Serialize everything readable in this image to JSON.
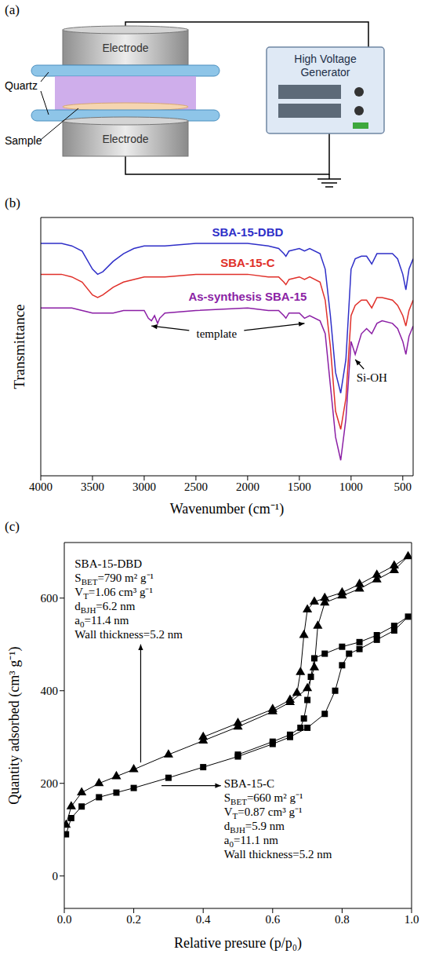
{
  "diagram": {
    "label": "(a)",
    "electrode_top": "Electrode",
    "electrode_bottom": "Electrode",
    "quartz": "Quartz",
    "sample": "Sample",
    "generator": "High Voltage Generator"
  },
  "chart_data": [
    {
      "panel": "(b)",
      "type": "line",
      "x_label": "Wavenumber (cm⁻¹)",
      "y_label": "Transmittance",
      "xlim": [
        4000,
        400
      ],
      "xticks": [
        4000,
        3500,
        3000,
        2500,
        2000,
        1500,
        1000,
        500
      ],
      "ylim": [
        0,
        100
      ],
      "tick_labels": "x",
      "x": [
        4000,
        3800,
        3700,
        3600,
        3500,
        3450,
        3400,
        3300,
        3200,
        3100,
        3000,
        2960,
        2930,
        2900,
        2870,
        2850,
        2800,
        2500,
        2000,
        1800,
        1700,
        1650,
        1630,
        1600,
        1500,
        1450,
        1400,
        1300,
        1250,
        1200,
        1150,
        1100,
        1050,
        1000,
        960,
        900,
        850,
        800,
        750,
        700,
        600,
        550,
        500,
        470,
        440,
        400
      ],
      "series": [
        {
          "name": "SBA-15-DBD",
          "color": "#2f2fc8",
          "values": [
            90,
            90,
            89,
            87,
            80,
            78,
            79,
            83,
            86,
            88,
            89,
            89,
            89,
            89,
            89,
            89,
            89,
            90,
            90,
            89,
            88,
            86,
            85,
            87,
            88,
            87,
            88,
            86,
            80,
            62,
            40,
            32,
            45,
            80,
            84,
            85,
            85,
            82,
            86,
            86,
            86,
            84,
            78,
            72,
            80,
            84
          ]
        },
        {
          "name": "SBA-15-C",
          "color": "#e0302a",
          "values": [
            78,
            78,
            77,
            75,
            70,
            69,
            70,
            73,
            75,
            76,
            77,
            77,
            77,
            77,
            77,
            77,
            77,
            78,
            78,
            77,
            77,
            75,
            74,
            76,
            77,
            76,
            77,
            75,
            68,
            50,
            25,
            18,
            30,
            62,
            66,
            68,
            68,
            65,
            69,
            69,
            68,
            66,
            62,
            58,
            64,
            68
          ]
        },
        {
          "name": "As-synthesis SBA-15",
          "color": "#8b1fa5",
          "values": [
            65,
            65,
            65,
            64,
            63,
            63,
            63,
            63,
            64,
            64,
            64,
            61,
            60,
            62,
            59,
            61,
            63,
            64,
            65,
            64,
            64,
            62,
            61,
            63,
            63,
            61,
            62,
            60,
            55,
            35,
            15,
            6,
            22,
            52,
            47,
            55,
            57,
            55,
            59,
            60,
            59,
            57,
            52,
            47,
            54,
            58
          ]
        }
      ],
      "annotations": [
        {
          "text": "template",
          "x": 2300,
          "y": 55,
          "points": [
            [
              2930,
              58
            ],
            [
              1450,
              59
            ]
          ]
        },
        {
          "text": "Si-OH",
          "x": 800,
          "y": 38,
          "points": [
            [
              960,
              45
            ]
          ]
        }
      ]
    },
    {
      "panel": "(c)",
      "type": "scatter",
      "x_label": "Relative presure (p/p₀)",
      "y_label": "Quantity adsorbed (cm³ g⁻¹)",
      "xlim": [
        0,
        1
      ],
      "xticks": [
        {
          "value": 0,
          "label": "0.0"
        },
        {
          "value": 0.2,
          "label": "0.2"
        },
        {
          "value": 0.4,
          "label": "0.4"
        },
        {
          "value": 0.6,
          "label": "0.6"
        },
        {
          "value": 0.8,
          "label": "0.8"
        },
        {
          "value": 1,
          "label": "1.0"
        }
      ],
      "ylim": [
        -70,
        720
      ],
      "yticks": [
        0,
        200,
        400,
        600
      ],
      "series": [
        {
          "name": "SBA-15-DBD",
          "color": "#000000",
          "marker": "triangle",
          "line_style": "solid",
          "x": [
            0.005,
            0.02,
            0.05,
            0.1,
            0.15,
            0.2,
            0.3,
            0.4,
            0.5,
            0.6,
            0.65,
            0.7,
            0.72,
            0.73,
            0.75,
            0.8,
            0.85,
            0.9,
            0.95,
            0.99,
            0.95,
            0.9,
            0.85,
            0.8,
            0.75,
            0.72,
            0.7,
            0.69,
            0.68,
            0.67,
            0.65,
            0.6,
            0.5,
            0.4
          ],
          "values": [
            110,
            150,
            180,
            200,
            215,
            230,
            262,
            292,
            322,
            355,
            375,
            405,
            450,
            540,
            590,
            605,
            620,
            640,
            660,
            690,
            670,
            650,
            630,
            612,
            600,
            592,
            575,
            520,
            440,
            395,
            380,
            360,
            330,
            300
          ],
          "label": {
            "x": 0.03,
            "y": 690,
            "arrow": [
              0.22,
              245
            ],
            "lines": [
              "SBET=790 m² g⁻¹",
              "VT=1.06 cm³ g⁻¹",
              "dBJH=6.2 nm",
              "a0=11.4 nm",
              "Wall thickness=5.2 nm"
            ]
          }
        },
        {
          "name": "SBA-15-C",
          "color": "#000000",
          "marker": "square",
          "line_style": "solid",
          "x": [
            0.005,
            0.02,
            0.05,
            0.1,
            0.15,
            0.2,
            0.3,
            0.4,
            0.5,
            0.6,
            0.65,
            0.7,
            0.75,
            0.78,
            0.8,
            0.82,
            0.85,
            0.9,
            0.95,
            0.99,
            0.95,
            0.9,
            0.85,
            0.8,
            0.75,
            0.72,
            0.71,
            0.7,
            0.69,
            0.68,
            0.65,
            0.6,
            0.5
          ],
          "values": [
            90,
            125,
            150,
            170,
            180,
            190,
            212,
            235,
            258,
            285,
            300,
            320,
            350,
            400,
            455,
            480,
            490,
            510,
            530,
            560,
            540,
            520,
            505,
            495,
            480,
            470,
            430,
            380,
            340,
            320,
            305,
            290,
            262
          ],
          "label": {
            "x": 0.46,
            "y": 215,
            "arrow": [
              0.28,
              195
            ],
            "lines": [
              "SBET=660 m² g⁻¹",
              "VT=0.87 cm³ g⁻¹",
              "dBJH=5.9 nm",
              "a0=11.1 nm",
              "Wall thickness=5.2 nm"
            ]
          }
        }
      ]
    }
  ]
}
